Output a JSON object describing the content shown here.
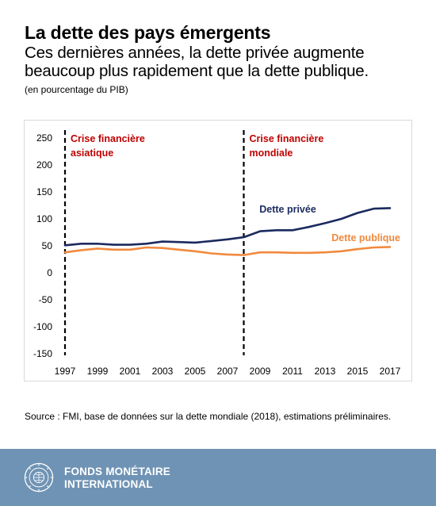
{
  "header": {
    "title": "La dette des pays émergents",
    "subtitle": "Ces dernières années, la dette privée augmente beaucoup plus rapidement que la dette publique.",
    "unit_note": "(en pourcentage du PIB)"
  },
  "chart_data": {
    "type": "line",
    "x": [
      1997,
      1998,
      1999,
      2000,
      2001,
      2002,
      2003,
      2004,
      2005,
      2006,
      2007,
      2008,
      2009,
      2010,
      2011,
      2012,
      2013,
      2014,
      2015,
      2016,
      2017
    ],
    "x_tick_labels": [
      "1997",
      "1999",
      "2001",
      "2003",
      "2005",
      "2007",
      "2009",
      "2011",
      "2013",
      "2015",
      "2017"
    ],
    "ylim": [
      -150,
      250
    ],
    "y_ticks": [
      250,
      200,
      150,
      100,
      50,
      0,
      -50,
      -100,
      -150
    ],
    "y_tick_labels": [
      "250",
      "200",
      "150",
      "100",
      "50",
      "0",
      "-50",
      "-100",
      "-150"
    ],
    "grid": false,
    "series": [
      {
        "name": "Dette privée",
        "color": "#1b2a5e",
        "values": [
          51,
          54,
          54,
          52,
          52,
          54,
          58,
          57,
          56,
          59,
          62,
          66,
          77,
          79,
          79,
          85,
          92,
          100,
          111,
          119,
          120
        ]
      },
      {
        "name": "Dette publique",
        "color": "#f08a3e",
        "values": [
          38,
          42,
          45,
          43,
          43,
          47,
          46,
          43,
          40,
          36,
          34,
          33,
          38,
          38,
          37,
          37,
          38,
          40,
          44,
          47,
          48
        ]
      }
    ],
    "events": [
      {
        "x": 1997,
        "label_lines": [
          "Crise financière",
          "asiatique"
        ]
      },
      {
        "x": 2008,
        "label_lines": [
          "Crise financière",
          "mondiale"
        ]
      }
    ],
    "event_label_color": "#c00000"
  },
  "footer": {
    "source": "Source : FMI, base de données sur la dette mondiale (2018), estimations préliminaires.",
    "org_line1": "FONDS MONÉTAIRE",
    "org_line2": "INTERNATIONAL",
    "background": "#6f93b4"
  }
}
